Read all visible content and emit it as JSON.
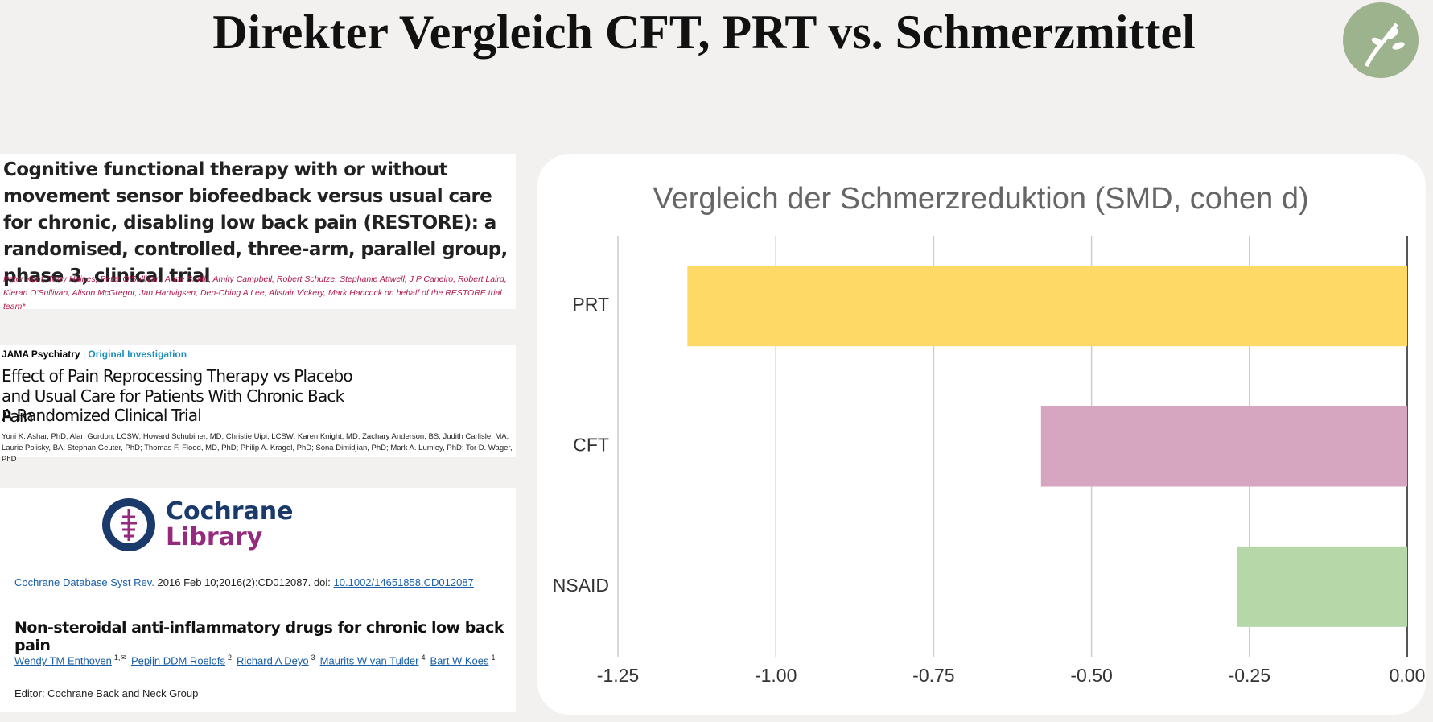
{
  "slide_title": "Direkter Vergleich CFT, PRT vs. Schmerzmittel",
  "papers": [
    {
      "title": "Cognitive functional therapy with or without movement sensor biofeedback versus usual care for chronic, disabling low back pain (RESTORE): a randomised, controlled, three-arm, parallel group, phase 3, clinical trial",
      "authors": "Peter Kent, Terry Haines, Peter O'Sullivan, Anne Smith, Amity Campbell, Robert Schutze, Stephanie Attwell, J P Caneiro, Robert Laird, Kieran O'Sullivan, Alison McGregor, Jan Hartvigsen, Den-Ching A Lee, Alistair Vickery, Mark Hancock on behalf of the RESTORE trial team*"
    },
    {
      "journal": "JAMA Psychiatry",
      "separator": "|",
      "section": "Original Investigation",
      "title": "Effect of Pain Reprocessing Therapy vs Placebo and Usual Care for Patients With Chronic Back Pain",
      "subtitle": "A Randomized Clinical Trial",
      "authors": "Yoni K. Ashar, PhD; Alan Gordon, LCSW; Howard Schubiner, MD; Christie Uipi, LCSW; Karen Knight, MD; Zachary Anderson, BS; Judith Carlisle, MA; Laurie Polisky, BA; Stephan Geuter, PhD; Thomas F. Flood, MD, PhD; Philip A. Kragel, PhD; Sona Dimidjian, PhD; Mark A. Lumley, PhD; Tor D. Wager, PhD"
    },
    {
      "logo_top": "Cochrane",
      "logo_bottom": "Library",
      "journal": "Cochrane Database Syst Rev.",
      "citation": "2016 Feb 10;2016(2):CD012087. doi:",
      "doi": "10.1002/14651858.CD012087",
      "title": "Non-steroidal anti-inflammatory drugs for chronic low back pain",
      "authors": [
        {
          "name": "Wendy TM Enthoven",
          "sup": "1,✉"
        },
        {
          "name": "Pepijn DDM Roelofs",
          "sup": "2"
        },
        {
          "name": "Richard A Deyo",
          "sup": "3"
        },
        {
          "name": "Maurits W van Tulder",
          "sup": "4"
        },
        {
          "name": "Bart W Koes",
          "sup": "1"
        }
      ],
      "editor": "Editor: Cochrane Back and Neck Group"
    }
  ],
  "chart_data": {
    "type": "hbar",
    "title": "Vergleich der Schmerzreduktion (SMD, cohen d)",
    "categories": [
      "PRT",
      "CFT",
      "NSAID"
    ],
    "values": [
      -1.14,
      -0.58,
      -0.27
    ],
    "colors": [
      "#fed966",
      "#d6a5c0",
      "#b6d7a8"
    ],
    "xlim": [
      -1.25,
      0
    ],
    "xticks": [
      -1.25,
      {
        "value": -1,
        "label": "-1.00"
      },
      -0.75,
      {
        "value": -0.5,
        "label": "-0.50"
      },
      -0.25,
      {
        "value": 0,
        "label": "0.00"
      }
    ],
    "grid": true
  }
}
